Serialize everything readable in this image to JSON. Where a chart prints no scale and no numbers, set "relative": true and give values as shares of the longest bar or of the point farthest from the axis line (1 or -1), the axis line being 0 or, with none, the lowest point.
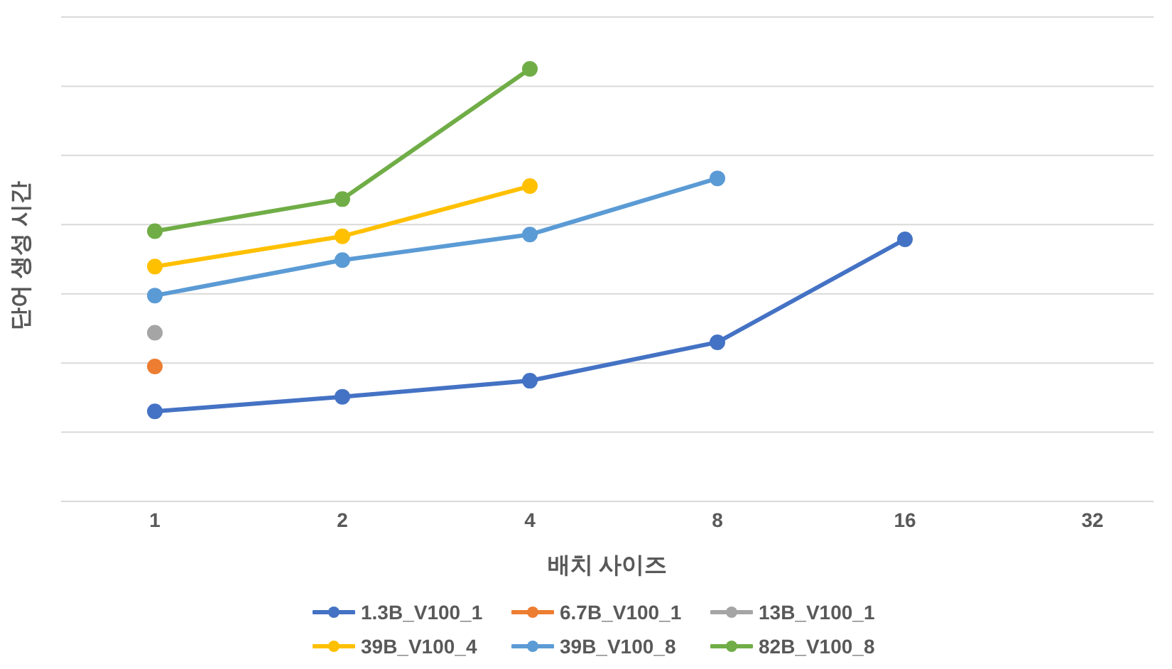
{
  "chart_data": {
    "type": "line",
    "relative": true,
    "xlabel": "배치 사이즈",
    "ylabel": "단어 생성 시간",
    "categories": [
      "1",
      "2",
      "4",
      "8",
      "16",
      "32"
    ],
    "grid": "y",
    "legend": "bottom",
    "marker": "circle",
    "line_style": "solid",
    "series": [
      {
        "name": "1.3B_V100_1",
        "color": "#4472c4",
        "values": [
          0.208,
          0.242,
          0.279,
          0.368,
          0.606,
          null
        ]
      },
      {
        "name": "6.7B_V100_1",
        "color": "#ed7d31",
        "values": [
          0.312,
          null,
          null,
          null,
          null,
          null
        ]
      },
      {
        "name": "13B_V100_1",
        "color": "#a5a5a5",
        "values": [
          0.39,
          null,
          null,
          null,
          null,
          null
        ]
      },
      {
        "name": "39B_V100_4",
        "color": "#ffc000",
        "values": [
          0.543,
          0.613,
          0.729,
          null,
          null,
          null
        ]
      },
      {
        "name": "39B_V100_8",
        "color": "#5b9bd5",
        "values": [
          0.476,
          0.558,
          0.617,
          0.747,
          null,
          null
        ]
      },
      {
        "name": "82B_V100_8",
        "color": "#70ad47",
        "values": [
          0.625,
          0.699,
          1,
          null,
          null,
          null
        ]
      }
    ]
  }
}
